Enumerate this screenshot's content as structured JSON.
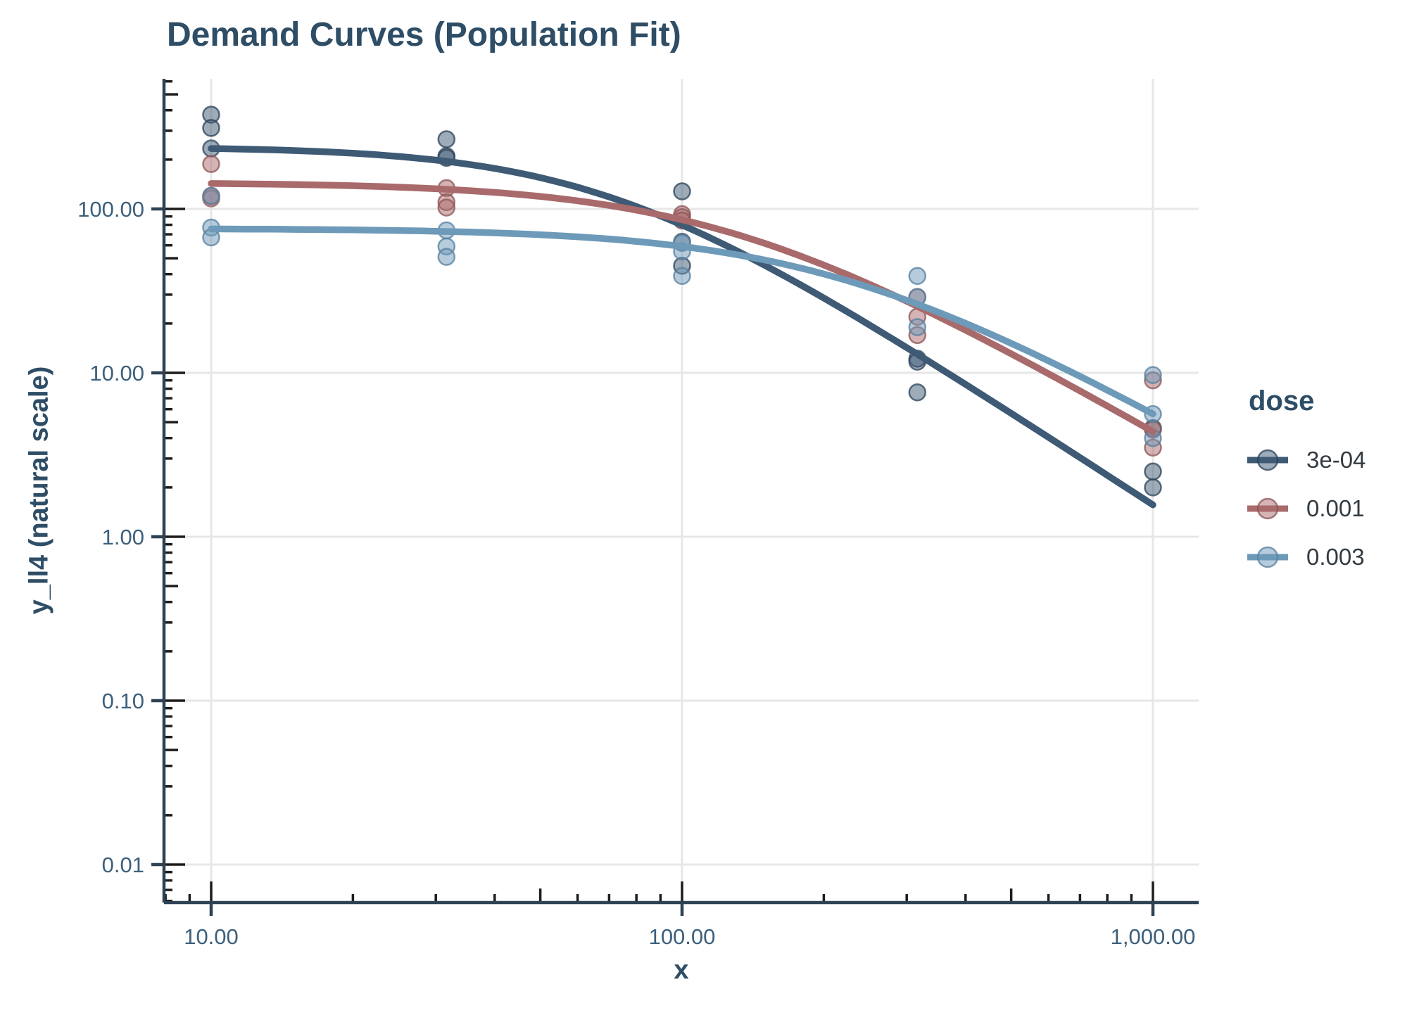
{
  "chart_data": {
    "type": "scatter",
    "title": "Demand Curves (Population Fit)",
    "legend_title": "dose",
    "x_scale": "log10",
    "y_scale": "log10",
    "xlim": [
      7.9,
      1250
    ],
    "ylim": [
      0.006,
      620
    ],
    "grid": "major-only",
    "legend_position": "right",
    "x_axis": {
      "title": "x",
      "ticks": [
        {
          "v": 10,
          "label": "10.00"
        },
        {
          "v": 100,
          "label": "100.00"
        },
        {
          "v": 1000,
          "label": "1,000.00"
        }
      ]
    },
    "y_axis": {
      "title": "y_ll4 (natural scale)",
      "ticks": [
        {
          "v": 100,
          "label": "100.00"
        },
        {
          "v": 10,
          "label": "10.00"
        },
        {
          "v": 1,
          "label": "1.00"
        },
        {
          "v": 0.1,
          "label": "0.10"
        },
        {
          "v": 0.01,
          "label": "0.01"
        }
      ]
    },
    "series": [
      {
        "name": "3e-04",
        "color": "#3e5a75",
        "stroke": "#2b4257",
        "fit_ll4": {
          "d": 240,
          "b": 1.88,
          "e": 69
        },
        "points": [
          [
            10,
            376
          ],
          [
            10,
            312
          ],
          [
            10,
            234
          ],
          [
            31.6,
            266
          ],
          [
            31.6,
            210
          ],
          [
            31.6,
            205
          ],
          [
            100,
            128
          ],
          [
            100,
            63
          ],
          [
            100,
            45
          ],
          [
            316,
            12.2
          ],
          [
            316,
            11.7
          ],
          [
            316,
            7.6
          ],
          [
            1000,
            4.6
          ],
          [
            1000,
            2.5
          ],
          [
            1000,
            2.0
          ]
        ]
      },
      {
        "name": "0.001",
        "color": "#a96a6b",
        "stroke": "#8c5354",
        "fit_ll4": {
          "d": 145,
          "b": 1.668,
          "e": 125
        },
        "points": [
          [
            10,
            188
          ],
          [
            10,
            120
          ],
          [
            10,
            116
          ],
          [
            31.6,
            134
          ],
          [
            31.6,
            110
          ],
          [
            31.6,
            102
          ],
          [
            100,
            93
          ],
          [
            100,
            89
          ],
          [
            100,
            85
          ],
          [
            316,
            29
          ],
          [
            316,
            22
          ],
          [
            316,
            17
          ],
          [
            1000,
            9.0
          ],
          [
            1000,
            4.5
          ],
          [
            1000,
            3.5
          ]
        ]
      },
      {
        "name": "0.003",
        "color": "#6e9ab9",
        "stroke": "#557f9f",
        "fit_ll4": {
          "d": 76,
          "b": 1.64,
          "e": 214
        },
        "points": [
          [
            10,
            120
          ],
          [
            10,
            77
          ],
          [
            10,
            67
          ],
          [
            31.6,
            74
          ],
          [
            31.6,
            59
          ],
          [
            31.6,
            51
          ],
          [
            100,
            62
          ],
          [
            100,
            55
          ],
          [
            100,
            39
          ],
          [
            316,
            39
          ],
          [
            316,
            29
          ],
          [
            316,
            19
          ],
          [
            1000,
            9.7
          ],
          [
            1000,
            5.6
          ],
          [
            1000,
            4.0
          ]
        ]
      }
    ],
    "theme_colors": {
      "title": "#2e4d66",
      "axis_line": "#2e4254",
      "tick_label": "#3d607c",
      "log_tick": "#1c1c1c",
      "grid_line": "#e7e7e7",
      "legend_label": "#333b42"
    }
  }
}
